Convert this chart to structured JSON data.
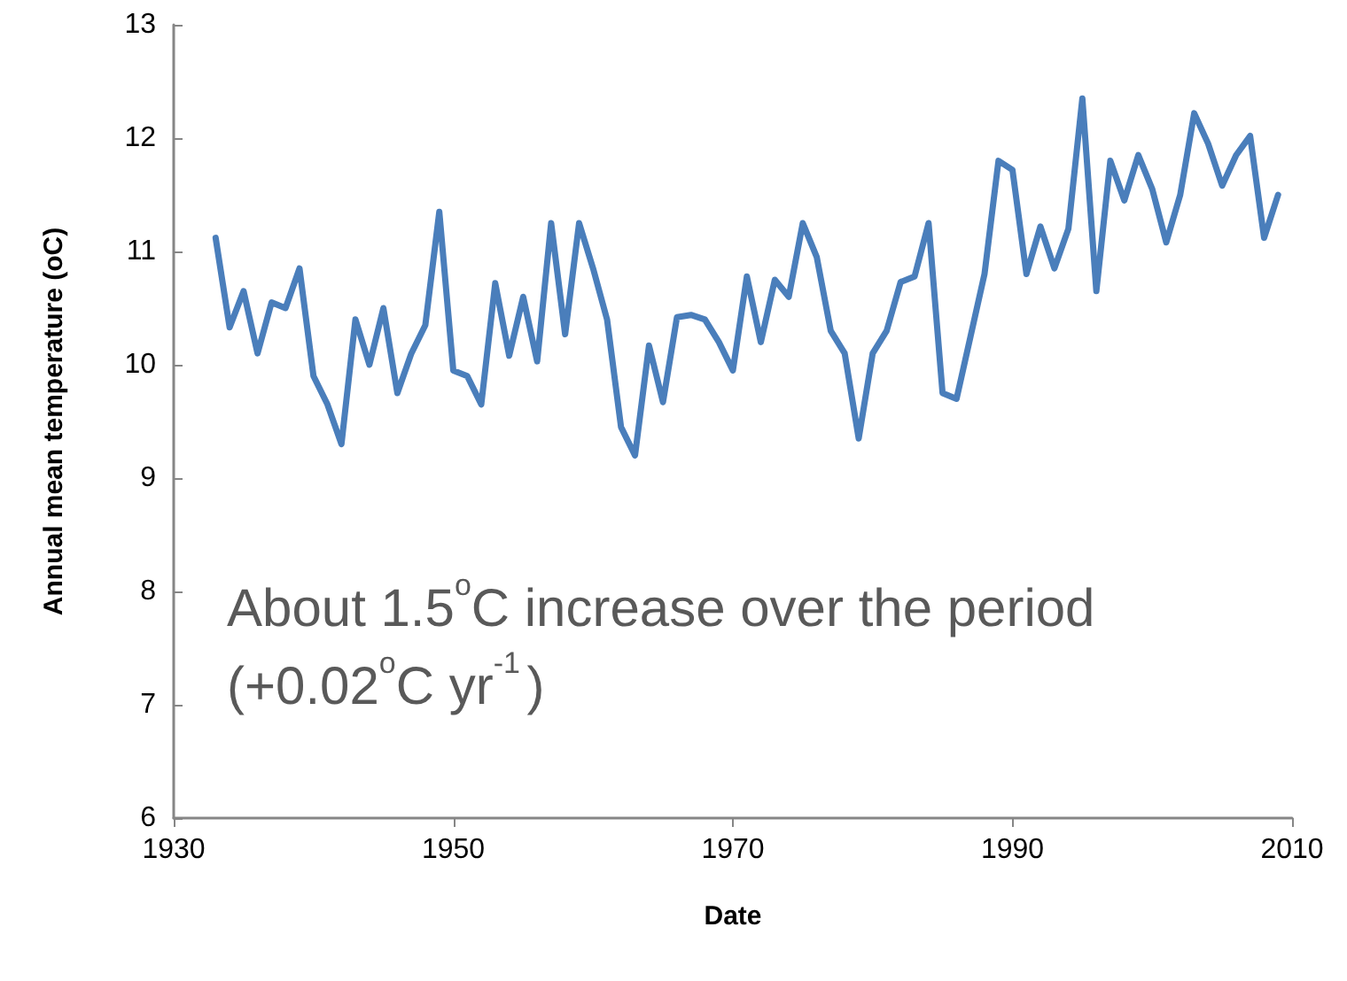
{
  "chart_data": {
    "type": "line",
    "xlabel": "Date",
    "ylabel": "Annual mean temperature (oC)",
    "x": [
      1933,
      1934,
      1935,
      1936,
      1937,
      1938,
      1939,
      1940,
      1941,
      1942,
      1943,
      1944,
      1945,
      1946,
      1947,
      1948,
      1949,
      1950,
      1951,
      1952,
      1953,
      1954,
      1955,
      1956,
      1957,
      1958,
      1959,
      1960,
      1961,
      1962,
      1963,
      1964,
      1965,
      1966,
      1967,
      1968,
      1969,
      1970,
      1971,
      1972,
      1973,
      1974,
      1975,
      1976,
      1977,
      1978,
      1979,
      1980,
      1981,
      1982,
      1983,
      1984,
      1985,
      1986,
      1987,
      1988,
      1989,
      1990,
      1991,
      1992,
      1993,
      1994,
      1995,
      1996,
      1997,
      1998,
      1999,
      2000,
      2001,
      2002,
      2003,
      2004,
      2005,
      2006,
      2007,
      2008,
      2009
    ],
    "series": [
      {
        "color": "#4a7ebb",
        "values": [
          11.12,
          10.33,
          10.65,
          10.1,
          10.55,
          10.5,
          10.85,
          9.9,
          9.65,
          9.3,
          10.4,
          10.0,
          10.5,
          9.75,
          10.1,
          10.35,
          11.35,
          9.95,
          9.9,
          9.65,
          10.72,
          10.08,
          10.6,
          10.03,
          11.25,
          10.27,
          11.25,
          10.85,
          10.4,
          9.45,
          9.2,
          10.17,
          9.67,
          10.42,
          10.44,
          10.4,
          10.2,
          9.95,
          10.78,
          10.2,
          10.75,
          10.6,
          11.25,
          10.95,
          10.3,
          10.1,
          9.35,
          10.1,
          10.3,
          10.73,
          10.78,
          11.25,
          9.75,
          9.7,
          10.25,
          10.8,
          11.8,
          11.72,
          10.8,
          11.22,
          10.85,
          11.2,
          12.35,
          10.65,
          11.8,
          11.45,
          11.85,
          11.55,
          11.08,
          11.5,
          12.22,
          11.95,
          11.58,
          11.85,
          12.02,
          11.12,
          11.5
        ]
      }
    ],
    "xlim": [
      1930,
      2010
    ],
    "xticks": [
      1930,
      1950,
      1970,
      1990,
      2010
    ],
    "ylim": [
      6,
      13
    ],
    "yticks": [
      6,
      7,
      8,
      9,
      10,
      11,
      12,
      13
    ],
    "marker": "none",
    "line_style": "solid",
    "annotations": [
      "About 1.5$^{o}$C increase over the period (+0.02$^{o}$C yr$^{-1}$)"
    ]
  }
}
